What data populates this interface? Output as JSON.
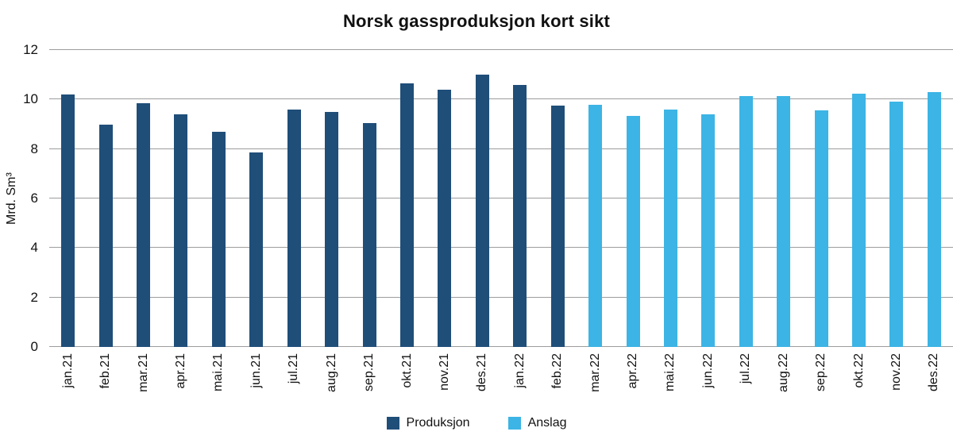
{
  "chart_data": {
    "type": "bar",
    "title": "Norsk gassproduksjon kort sikt",
    "xlabel": "",
    "ylabel": "Mrd. Sm³",
    "ylim": [
      0,
      12
    ],
    "yticks": [
      0,
      2,
      4,
      6,
      8,
      10,
      12
    ],
    "grid": true,
    "legend_position": "bottom",
    "categories": [
      "jan.21",
      "feb.21",
      "mar.21",
      "apr.21",
      "mai.21",
      "jun.21",
      "jul.21",
      "aug.21",
      "sep.21",
      "okt.21",
      "nov.21",
      "des.21",
      "jan.22",
      "feb.22",
      "mar.22",
      "apr.22",
      "mai.22",
      "jun.22",
      "jul.22",
      "aug.22",
      "sep.22",
      "okt.22",
      "nov.22",
      "des.22"
    ],
    "series": [
      {
        "name": "Produksjon",
        "color": "#1F4E79",
        "values": [
          10.2,
          9.0,
          9.85,
          9.4,
          8.7,
          7.85,
          9.6,
          9.5,
          9.05,
          10.65,
          10.4,
          11.0,
          10.6,
          9.75,
          null,
          null,
          null,
          null,
          null,
          null,
          null,
          null,
          null,
          null
        ]
      },
      {
        "name": "Anslag",
        "color": "#3CB4E5",
        "values": [
          null,
          null,
          null,
          null,
          null,
          null,
          null,
          null,
          null,
          null,
          null,
          null,
          null,
          null,
          9.8,
          9.35,
          9.6,
          9.4,
          10.15,
          10.15,
          9.55,
          10.25,
          9.9,
          10.3
        ]
      }
    ]
  }
}
